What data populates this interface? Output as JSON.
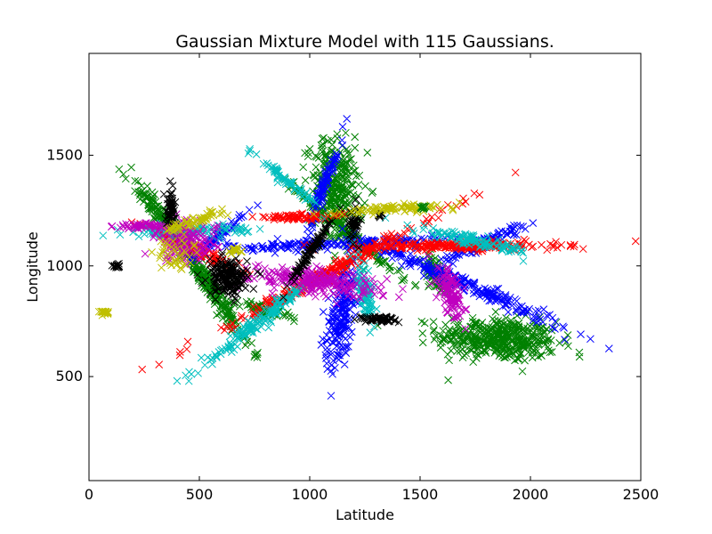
{
  "chart_data": {
    "type": "scatter",
    "title": "Gaussian Mixture Model with 115 Gaussians.",
    "xlabel": "Latitude",
    "ylabel": "Longitude",
    "xlim": [
      0,
      2500
    ],
    "ylim": [
      30,
      1960
    ],
    "xticks": [
      0,
      500,
      1000,
      1500,
      2000,
      2500
    ],
    "yticks": [
      500,
      1000,
      1500
    ],
    "marker": "x",
    "grid": false,
    "legend": "none",
    "clusters": [
      {
        "color": "#008000",
        "cx": 1850,
        "cy": 670,
        "sx": 135,
        "sy": 48,
        "angle": -4,
        "n": 420
      },
      {
        "color": "#008000",
        "cx": 1120,
        "cy": 1330,
        "sx": 55,
        "sy": 120,
        "angle": 8,
        "n": 320
      },
      {
        "color": "#008000",
        "cx": 520,
        "cy": 950,
        "sx": 190,
        "sy": 18,
        "angle": -56,
        "n": 260
      },
      {
        "color": "#008000",
        "cx": 370,
        "cy": 1180,
        "sx": 130,
        "sy": 15,
        "angle": -48,
        "n": 140
      },
      {
        "color": "#008000",
        "cx": 1200,
        "cy": 1130,
        "sx": 180,
        "sy": 10,
        "angle": -40,
        "n": 120
      },
      {
        "color": "#008000",
        "cx": 1570,
        "cy": 960,
        "sx": 50,
        "sy": 18,
        "angle": -70,
        "n": 70
      },
      {
        "color": "#008000",
        "cx": 800,
        "cy": 800,
        "sx": 60,
        "sy": 12,
        "angle": -15,
        "n": 60
      },
      {
        "color": "#0000ff",
        "cx": 1700,
        "cy": 920,
        "sx": 250,
        "sy": 16,
        "angle": -24,
        "n": 240
      },
      {
        "color": "#0000ff",
        "cx": 1140,
        "cy": 770,
        "sx": 120,
        "sy": 28,
        "angle": 82,
        "n": 200
      },
      {
        "color": "#0000ff",
        "cx": 1150,
        "cy": 1100,
        "sx": 260,
        "sy": 12,
        "angle": 2,
        "n": 180
      },
      {
        "color": "#0000ff",
        "cx": 1060,
        "cy": 1350,
        "sx": 120,
        "sy": 10,
        "angle": 70,
        "n": 90
      },
      {
        "color": "#0000ff",
        "cx": 1800,
        "cy": 1110,
        "sx": 120,
        "sy": 12,
        "angle": 25,
        "n": 90
      },
      {
        "color": "#0000ff",
        "cx": 580,
        "cy": 1130,
        "sx": 90,
        "sy": 10,
        "angle": 40,
        "n": 70
      },
      {
        "color": "#ff0000",
        "cx": 1680,
        "cy": 1090,
        "sx": 220,
        "sy": 10,
        "angle": 0,
        "n": 220
      },
      {
        "color": "#ff0000",
        "cx": 1050,
        "cy": 950,
        "sx": 330,
        "sy": 14,
        "angle": 28,
        "n": 240
      },
      {
        "color": "#ff0000",
        "cx": 950,
        "cy": 1220,
        "sx": 100,
        "sy": 7,
        "angle": 0,
        "n": 70
      },
      {
        "color": "#ff0000",
        "cx": 470,
        "cy": 1080,
        "sx": 120,
        "sy": 10,
        "angle": -25,
        "n": 90
      },
      {
        "color": "#00bfbf",
        "cx": 1750,
        "cy": 1110,
        "sx": 140,
        "sy": 12,
        "angle": -12,
        "n": 120
      },
      {
        "color": "#00bfbf",
        "cx": 760,
        "cy": 740,
        "sx": 150,
        "sy": 14,
        "angle": 38,
        "n": 140
      },
      {
        "color": "#00bfbf",
        "cx": 1250,
        "cy": 880,
        "sx": 70,
        "sy": 16,
        "angle": -80,
        "n": 90
      },
      {
        "color": "#00bfbf",
        "cx": 450,
        "cy": 1160,
        "sx": 140,
        "sy": 12,
        "angle": 2,
        "n": 100
      },
      {
        "color": "#00bfbf",
        "cx": 900,
        "cy": 1380,
        "sx": 90,
        "sy": 10,
        "angle": -40,
        "n": 60
      },
      {
        "color": "#bf00bf",
        "cx": 1030,
        "cy": 930,
        "sx": 150,
        "sy": 28,
        "angle": -6,
        "n": 220
      },
      {
        "color": "#bf00bf",
        "cx": 1640,
        "cy": 870,
        "sx": 55,
        "sy": 25,
        "angle": -70,
        "n": 110
      },
      {
        "color": "#bf00bf",
        "cx": 440,
        "cy": 1110,
        "sx": 70,
        "sy": 45,
        "angle": 0,
        "n": 140
      },
      {
        "color": "#bf00bf",
        "cx": 240,
        "cy": 1180,
        "sx": 60,
        "sy": 6,
        "angle": 0,
        "n": 50
      },
      {
        "color": "#000000",
        "cx": 630,
        "cy": 950,
        "sx": 45,
        "sy": 40,
        "angle": 0,
        "n": 180
      },
      {
        "color": "#000000",
        "cx": 1010,
        "cy": 1070,
        "sx": 95,
        "sy": 8,
        "angle": 55,
        "n": 90
      },
      {
        "color": "#000000",
        "cx": 1310,
        "cy": 760,
        "sx": 40,
        "sy": 6,
        "angle": 0,
        "n": 60
      },
      {
        "color": "#000000",
        "cx": 370,
        "cy": 1260,
        "sx": 12,
        "sy": 40,
        "angle": 0,
        "n": 50
      },
      {
        "color": "#000000",
        "cx": 1200,
        "cy": 1200,
        "sx": 14,
        "sy": 40,
        "angle": 0,
        "n": 40
      },
      {
        "color": "#000000",
        "cx": 128,
        "cy": 1000,
        "sx": 8,
        "sy": 5,
        "angle": 0,
        "n": 15
      },
      {
        "color": "#000000",
        "cx": 1320,
        "cy": 1230,
        "sx": 8,
        "sy": 5,
        "angle": 0,
        "n": 10
      },
      {
        "color": "#bfbf00",
        "cx": 1400,
        "cy": 1260,
        "sx": 130,
        "sy": 8,
        "angle": 3,
        "n": 90
      },
      {
        "color": "#bfbf00",
        "cx": 470,
        "cy": 1200,
        "sx": 80,
        "sy": 10,
        "angle": 20,
        "n": 60
      },
      {
        "color": "#bfbf00",
        "cx": 390,
        "cy": 1050,
        "sx": 40,
        "sy": 40,
        "angle": 0,
        "n": 40
      },
      {
        "color": "#bfbf00",
        "cx": 65,
        "cy": 790,
        "sx": 12,
        "sy": 5,
        "angle": 0,
        "n": 20
      },
      {
        "color": "#bfbf00",
        "cx": 660,
        "cy": 1070,
        "sx": 15,
        "sy": 8,
        "angle": 0,
        "n": 20
      },
      {
        "color": "#008000",
        "cx": 1515,
        "cy": 1265,
        "sx": 8,
        "sy": 5,
        "angle": 0,
        "n": 10
      }
    ]
  }
}
